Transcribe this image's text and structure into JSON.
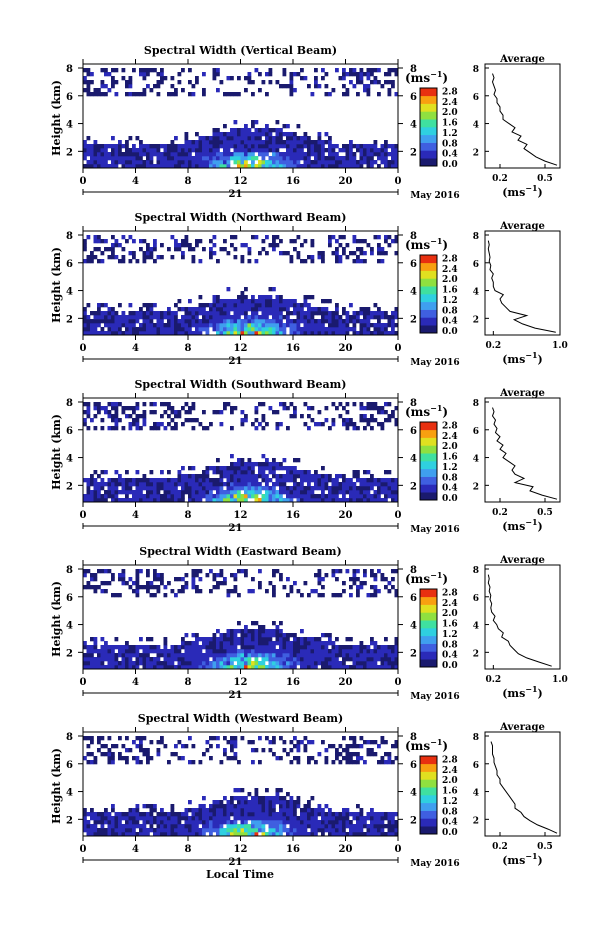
{
  "figure": {
    "date_label": "May 2016",
    "day_label": "21",
    "xlabel_bottom": "Local Time",
    "colorbar_unit_prefix": "(ms",
    "colorbar_unit_exp": "−1",
    "colorbar_unit_suffix": ")",
    "avg_title": "Average",
    "avg_unit_prefix": "(ms",
    "avg_unit_exp": "−1",
    "avg_unit_suffix": ")",
    "height_label": "Height (km)"
  },
  "colorbar": {
    "ticks": [
      "0.0",
      "0.4",
      "0.8",
      "1.2",
      "1.6",
      "2.0",
      "2.4",
      "2.8"
    ],
    "colors": [
      "#1a1a6e",
      "#2a2ab8",
      "#3f5fe0",
      "#3f9fef",
      "#2fd0e0",
      "#3fe0a0",
      "#8fe040",
      "#e0e020",
      "#f8a010",
      "#e83010"
    ]
  },
  "chart_data": [
    {
      "type": "heatmap",
      "title": "Spectral Width (Vertical Beam)",
      "xlabel": "Local Time",
      "ylabel": "Height (km)",
      "xlim": [
        0,
        24
      ],
      "ylim": [
        0.8,
        8
      ],
      "x_ticks": [
        "0",
        "4",
        "8",
        "12",
        "16",
        "20",
        "0"
      ],
      "y_ticks": [
        2,
        4,
        6,
        8
      ],
      "x": [
        0,
        24
      ],
      "y": [
        1,
        8
      ],
      "avg_profile": {
        "title": "Average",
        "xlim": [
          0.1,
          0.6
        ],
        "x_ticks": [
          "0.2",
          "0.5"
        ],
        "ylim": [
          0.8,
          8
        ],
        "height": [
          1.0,
          1.3,
          1.6,
          1.9,
          2.2,
          2.5,
          2.8,
          3.1,
          3.4,
          3.7,
          4.0,
          4.3,
          4.6,
          4.9,
          5.2,
          5.5,
          5.8,
          6.1,
          6.4,
          6.7,
          7.0,
          7.3,
          7.6
        ],
        "value": [
          0.58,
          0.5,
          0.44,
          0.4,
          0.36,
          0.38,
          0.32,
          0.34,
          0.28,
          0.3,
          0.26,
          0.22,
          0.22,
          0.2,
          0.2,
          0.18,
          0.18,
          0.16,
          0.17,
          0.16,
          0.15,
          0.16,
          0.15
        ]
      }
    },
    {
      "type": "heatmap",
      "title": "Spectral Width (Northward Beam)",
      "xlabel": "Local Time",
      "ylabel": "Height (km)",
      "xlim": [
        0,
        24
      ],
      "ylim": [
        0.8,
        8
      ],
      "x_ticks": [
        "0",
        "4",
        "8",
        "12",
        "16",
        "20",
        "0"
      ],
      "y_ticks": [
        2,
        4,
        6,
        8
      ],
      "x": [
        0,
        24
      ],
      "y": [
        1,
        8
      ],
      "avg_profile": {
        "title": "Average",
        "xlim": [
          0.1,
          1.0
        ],
        "x_ticks": [
          "0.2",
          "1.0"
        ],
        "ylim": [
          0.8,
          8
        ],
        "height": [
          1.0,
          1.3,
          1.6,
          1.9,
          2.2,
          2.5,
          2.8,
          3.1,
          3.4,
          3.7,
          4.0,
          4.3,
          4.6,
          4.9,
          5.2,
          5.5,
          5.8,
          6.1,
          6.4,
          6.7,
          7.0,
          7.3,
          7.6
        ],
        "value": [
          0.95,
          0.7,
          0.55,
          0.45,
          0.6,
          0.4,
          0.35,
          0.3,
          0.28,
          0.32,
          0.22,
          0.2,
          0.2,
          0.18,
          0.2,
          0.16,
          0.17,
          0.15,
          0.16,
          0.15,
          0.14,
          0.15,
          0.14
        ]
      }
    },
    {
      "type": "heatmap",
      "title": "Spectral Width (Southward Beam)",
      "xlabel": "Local Time",
      "ylabel": "Height (km)",
      "xlim": [
        0,
        24
      ],
      "ylim": [
        0.8,
        8
      ],
      "x_ticks": [
        "0",
        "4",
        "8",
        "12",
        "16",
        "20",
        "0"
      ],
      "y_ticks": [
        2,
        4,
        6,
        8
      ],
      "x": [
        0,
        24
      ],
      "y": [
        1,
        8
      ],
      "avg_profile": {
        "title": "Average",
        "xlim": [
          0.1,
          0.6
        ],
        "x_ticks": [
          "0.2",
          "0.5"
        ],
        "ylim": [
          0.8,
          8
        ],
        "height": [
          1.0,
          1.3,
          1.6,
          1.9,
          2.2,
          2.5,
          2.8,
          3.1,
          3.4,
          3.7,
          4.0,
          4.3,
          4.6,
          4.9,
          5.2,
          5.5,
          5.8,
          6.1,
          6.4,
          6.7,
          7.0,
          7.3,
          7.6
        ],
        "value": [
          0.58,
          0.48,
          0.4,
          0.42,
          0.3,
          0.36,
          0.3,
          0.28,
          0.3,
          0.26,
          0.22,
          0.24,
          0.2,
          0.22,
          0.18,
          0.2,
          0.17,
          0.18,
          0.16,
          0.17,
          0.15,
          0.16,
          0.15
        ]
      }
    },
    {
      "type": "heatmap",
      "title": "Spectral Width (Eastward Beam)",
      "xlabel": "Local Time",
      "ylabel": "Height (km)",
      "xlim": [
        0,
        24
      ],
      "ylim": [
        0.8,
        8
      ],
      "x_ticks": [
        "0",
        "4",
        "8",
        "12",
        "16",
        "20",
        "0"
      ],
      "y_ticks": [
        2,
        4,
        6,
        8
      ],
      "x": [
        0,
        24
      ],
      "y": [
        1,
        8
      ],
      "avg_profile": {
        "title": "Average",
        "xlim": [
          0.1,
          1.0
        ],
        "x_ticks": [
          "0.2",
          "1.0"
        ],
        "ylim": [
          0.8,
          8
        ],
        "height": [
          1.0,
          1.3,
          1.6,
          1.9,
          2.2,
          2.5,
          2.8,
          3.1,
          3.4,
          3.7,
          4.0,
          4.3,
          4.6,
          4.9,
          5.2,
          5.5,
          5.8,
          6.1,
          6.4,
          6.7,
          7.0,
          7.3,
          7.6
        ],
        "value": [
          0.9,
          0.75,
          0.6,
          0.5,
          0.45,
          0.4,
          0.38,
          0.3,
          0.32,
          0.26,
          0.24,
          0.2,
          0.22,
          0.18,
          0.17,
          0.18,
          0.16,
          0.17,
          0.15,
          0.16,
          0.14,
          0.15,
          0.14
        ]
      }
    },
    {
      "type": "heatmap",
      "title": "Spectral Width (Westward Beam)",
      "xlabel": "Local Time",
      "ylabel": "Height (km)",
      "xlim": [
        0,
        24
      ],
      "ylim": [
        0.8,
        8
      ],
      "x_ticks": [
        "0",
        "4",
        "8",
        "12",
        "16",
        "20",
        "0"
      ],
      "y_ticks": [
        2,
        4,
        6,
        8
      ],
      "x": [
        0,
        24
      ],
      "y": [
        1,
        8
      ],
      "avg_profile": {
        "title": "Average",
        "xlim": [
          0.1,
          0.6
        ],
        "x_ticks": [
          "0.2",
          "0.5"
        ],
        "ylim": [
          0.8,
          8
        ],
        "height": [
          1.0,
          1.3,
          1.6,
          1.9,
          2.2,
          2.5,
          2.8,
          3.1,
          3.4,
          3.7,
          4.0,
          4.3,
          4.6,
          4.9,
          5.2,
          5.5,
          5.8,
          6.1,
          6.4,
          6.7,
          7.0,
          7.3,
          7.6
        ],
        "value": [
          0.58,
          0.52,
          0.45,
          0.4,
          0.36,
          0.34,
          0.3,
          0.3,
          0.28,
          0.26,
          0.24,
          0.22,
          0.2,
          0.2,
          0.18,
          0.18,
          0.17,
          0.16,
          0.16,
          0.15,
          0.15,
          0.15,
          0.14
        ]
      }
    }
  ]
}
